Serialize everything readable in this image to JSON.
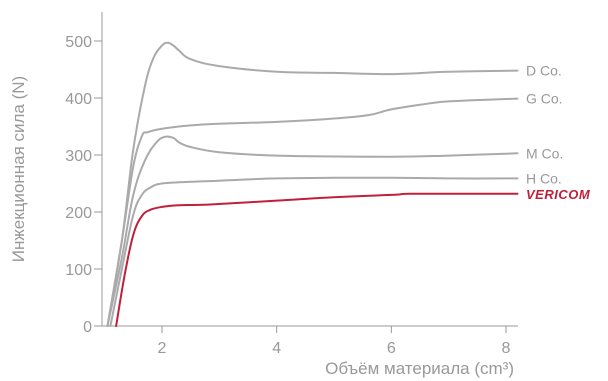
{
  "chart_data": {
    "type": "line",
    "title": "",
    "xlabel": "Объём материала (cm³)",
    "ylabel": "Инжекционная сила (N)",
    "xlim": [
      1,
      8.2
    ],
    "ylim": [
      0,
      550
    ],
    "xticks": [
      "2",
      "4",
      "6",
      "8"
    ],
    "yticks": [
      "0",
      "100",
      "200",
      "300",
      "400",
      "500"
    ],
    "grid": false,
    "legend": "right-side labels at line ends",
    "colors": {
      "axis": "#999999",
      "competitor_line": "#aaaaaa",
      "vericom": "#c0203a"
    },
    "series": [
      {
        "name": "D Co.",
        "color": "#aaaaaa",
        "x": [
          1.05,
          1.3,
          1.5,
          1.7,
          1.85,
          2.0,
          2.1,
          2.2,
          2.3,
          2.5,
          3.0,
          4.0,
          5.0,
          6.0,
          7.0,
          8.2
        ],
        "y": [
          0,
          150,
          310,
          420,
          470,
          492,
          497,
          492,
          483,
          468,
          456,
          446,
          444,
          442,
          446,
          448
        ]
      },
      {
        "name": "G Co.",
        "color": "#aaaaaa",
        "x": [
          1.05,
          1.3,
          1.5,
          1.65,
          1.75,
          2.0,
          2.5,
          3.0,
          4.0,
          5.0,
          5.6,
          6.0,
          6.5,
          7.0,
          8.2
        ],
        "y": [
          0,
          150,
          280,
          333,
          340,
          346,
          352,
          355,
          358,
          364,
          370,
          380,
          388,
          394,
          399
        ]
      },
      {
        "name": "M Co.",
        "color": "#aaaaaa",
        "x": [
          1.05,
          1.3,
          1.5,
          1.7,
          1.9,
          2.05,
          2.2,
          2.3,
          2.5,
          3.0,
          4.0,
          6.0,
          7.0,
          8.2
        ],
        "y": [
          0,
          120,
          230,
          290,
          322,
          332,
          330,
          322,
          314,
          305,
          299,
          297,
          299,
          303
        ]
      },
      {
        "name": "H Co.",
        "color": "#aaaaaa",
        "x": [
          1.1,
          1.3,
          1.5,
          1.65,
          1.8,
          2.0,
          2.5,
          3.0,
          4.0,
          5.0,
          6.0,
          7.0,
          8.2
        ],
        "y": [
          0,
          100,
          195,
          230,
          243,
          250,
          253,
          255,
          259,
          260,
          260,
          259,
          259
        ]
      },
      {
        "name": "VERICOM",
        "color": "#c0203a",
        "x": [
          1.2,
          1.35,
          1.5,
          1.65,
          1.8,
          2.0,
          2.3,
          2.8,
          4.0,
          5.0,
          6.0,
          6.3,
          7.0,
          8.2
        ],
        "y": [
          0,
          90,
          160,
          193,
          204,
          209,
          212,
          213,
          220,
          226,
          230,
          232,
          232,
          232
        ]
      }
    ]
  }
}
